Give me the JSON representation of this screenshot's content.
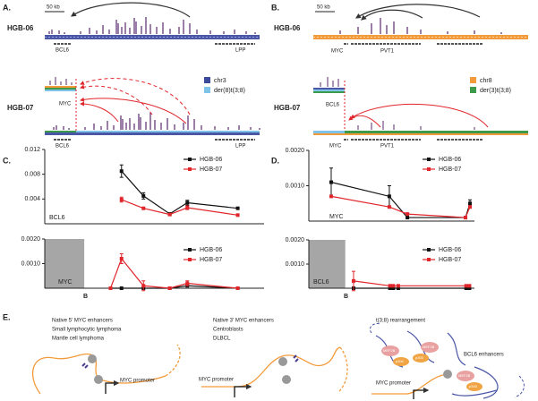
{
  "panel_a": {
    "label": "A.",
    "scale_bar": "50 kb",
    "top_sample": "HGB-06",
    "bottom_sample": "HGB-07",
    "top_genes": [
      "BCL6",
      "LPP"
    ],
    "bottom_genes": [
      "BCL6",
      "LPP"
    ],
    "translocated_gene": "MYC",
    "legend": [
      "chr3",
      "der(8)t(3;8)"
    ]
  },
  "panel_b": {
    "label": "B.",
    "scale_bar": "50 kb",
    "top_sample": "HGB-06",
    "bottom_sample": "HGB-07",
    "top_genes": [
      "MYC",
      "PVT1"
    ],
    "bottom_genes": [
      "MYC",
      "PVT1"
    ],
    "translocated_gene": "BCL6",
    "legend": [
      "chr8",
      "der(3)t(3;8)"
    ]
  },
  "panel_c": {
    "label": "C."
  },
  "panel_d": {
    "label": "D."
  },
  "chart_data": [
    {
      "type": "line",
      "xlim": [
        0,
        100
      ],
      "ylim": [
        0,
        0.012
      ],
      "yticks": [
        0.004,
        0.008,
        0.012
      ],
      "labels": [
        "BCL6"
      ],
      "series": [
        {
          "name": "HGB-06",
          "color": "#111111",
          "x": [
            35,
            45,
            57,
            65,
            88
          ],
          "values": [
            0.0085,
            0.0045,
            0.0016,
            0.0034,
            0.0025
          ],
          "errors": [
            0.001,
            0.0005,
            null,
            0.0004,
            null
          ]
        },
        {
          "name": "HGB-07",
          "color": "#e0252b",
          "x": [
            35,
            45,
            57,
            65,
            88
          ],
          "values": [
            0.0039,
            0.0025,
            0.0015,
            0.0026,
            0.0014
          ],
          "errors": [
            0.0004,
            null,
            null,
            0.0003,
            null
          ]
        }
      ]
    },
    {
      "type": "line",
      "xlim": [
        0,
        100
      ],
      "ylim": [
        0,
        0.002
      ],
      "yticks": [
        {
          "value": 0.001,
          "label": "0.0010"
        },
        {
          "value": 0.002,
          "label": "0.0020"
        }
      ],
      "shade": [
        0,
        18
      ],
      "labels": [
        "MYC",
        "B"
      ],
      "series": [
        {
          "name": "HGB-06",
          "color": "#111111",
          "x": [
            30,
            35,
            45,
            57,
            65,
            88
          ],
          "values": [
            0,
            0,
            0,
            0,
            0.0001,
            0
          ],
          "errors": [
            null,
            null,
            null,
            null,
            null,
            null
          ]
        },
        {
          "name": "HGB-07",
          "color": "#e0252b",
          "x": [
            30,
            35,
            45,
            57,
            65,
            88
          ],
          "values": [
            0,
            0.0012,
            0.0001,
            0,
            0.0002,
            0
          ],
          "errors": [
            null,
            0.0002,
            0.0002,
            null,
            0.0001,
            null
          ]
        }
      ]
    },
    {
      "type": "line",
      "xlim": [
        0,
        100
      ],
      "ylim": [
        0,
        0.002
      ],
      "yticks": [
        {
          "value": 0.001,
          "label": "0.0010"
        },
        {
          "value": 0.002,
          "label": "0.0020"
        }
      ],
      "labels": [
        "MYC"
      ],
      "series": [
        {
          "name": "HGB-06",
          "color": "#111111",
          "x": [
            13.5,
            48.6,
            59.5,
            94.6,
            97.3
          ],
          "values": [
            0.0011,
            0.0007,
            0.0001,
            0.0001,
            0.0005
          ],
          "errors": [
            0.0004,
            0.0003,
            null,
            null,
            0.0001
          ]
        },
        {
          "name": "HGB-07",
          "color": "#e0252b",
          "x": [
            13.5,
            48.6,
            59.5,
            94.6,
            97.3
          ],
          "values": [
            0.0007,
            0.0004,
            0.0002,
            0.0001,
            0.0004
          ],
          "errors": [
            null,
            null,
            null,
            null,
            null
          ]
        }
      ]
    },
    {
      "type": "line",
      "xlim": [
        0,
        100
      ],
      "ylim": [
        0,
        0.002
      ],
      "yticks": [
        {
          "value": 0.001,
          "label": "0.0010"
        },
        {
          "value": 0.002,
          "label": "0.0020"
        }
      ],
      "shade": [
        0,
        22
      ],
      "labels": [
        "BCL6",
        "B"
      ],
      "series": [
        {
          "name": "HGB-06",
          "color": "#111111",
          "x": [
            27,
            49,
            51,
            54,
            95,
            97
          ],
          "values": [
            0,
            0,
            0,
            0,
            0,
            0
          ],
          "errors": [
            null,
            null,
            null,
            null,
            null,
            null
          ]
        },
        {
          "name": "HGB-07",
          "color": "#e0252b",
          "x": [
            27,
            49,
            51,
            54,
            95,
            97
          ],
          "values": [
            0.0003,
            0.0001,
            0.0001,
            0.0001,
            0.0001,
            0.0001
          ],
          "errors": [
            0.0004,
            null,
            null,
            null,
            null,
            null
          ]
        }
      ]
    }
  ],
  "panel_e": {
    "label": "E.",
    "left": {
      "lines": [
        "Native 5' MYC enhancers",
        "Small lymphocytic lymphoma",
        "Mantle cell lymphoma"
      ],
      "promoter": "MYC promoter"
    },
    "middle": {
      "lines": [
        "Native 3' MYC enhancers",
        "Centroblasts",
        "DLBCL"
      ],
      "promoter": "MYC promoter"
    },
    "right": {
      "lines": [
        "t(3;8) rearrangement"
      ],
      "enhancers": "BCL6 enhancers",
      "promoter": "MYC promoter",
      "factors": [
        "MEF2B",
        "p300"
      ]
    }
  }
}
